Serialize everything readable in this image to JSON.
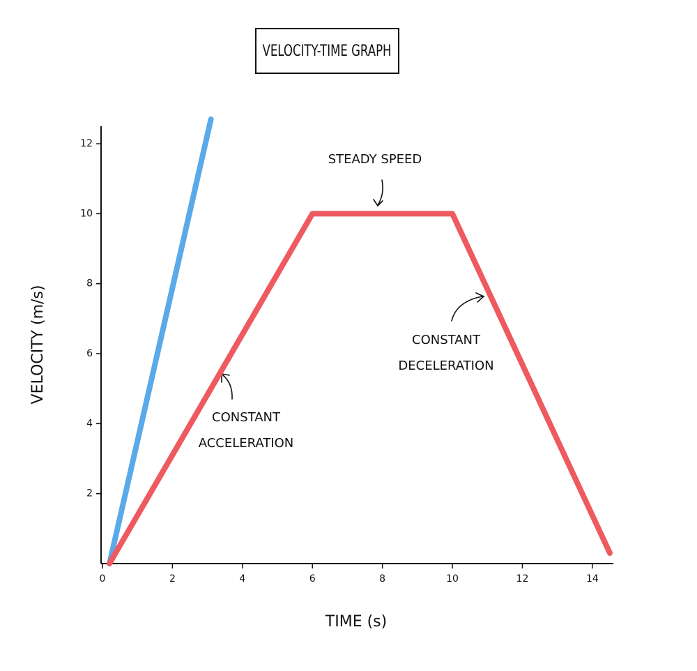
{
  "chart_data": {
    "type": "line",
    "title": "VELOCITY-TIME GRAPH",
    "x_label": "TIME (s)",
    "y_label": "VELOCITY (m/s)",
    "xlim": [
      0,
      14.6
    ],
    "ylim": [
      0,
      12.5
    ],
    "xticks": [
      0,
      2,
      4,
      6,
      8,
      10,
      12,
      14
    ],
    "yticks": [
      2,
      4,
      6,
      8,
      10,
      12
    ],
    "grid": false,
    "series": [
      {
        "color": "#5aaaea",
        "x": [
          0.2,
          3.1
        ],
        "values": [
          0,
          12.7
        ]
      },
      {
        "color": "#ee5a5f",
        "x": [
          0.2,
          6,
          10,
          14.5
        ],
        "values": [
          0,
          10,
          10,
          0.3
        ]
      }
    ],
    "annotations": [
      {
        "text": [
          "STEADY SPEED"
        ]
      },
      {
        "text": [
          "CONSTANT",
          "ACCELERATION"
        ]
      },
      {
        "text": [
          "CONSTANT",
          "DECELERATION"
        ]
      }
    ]
  }
}
